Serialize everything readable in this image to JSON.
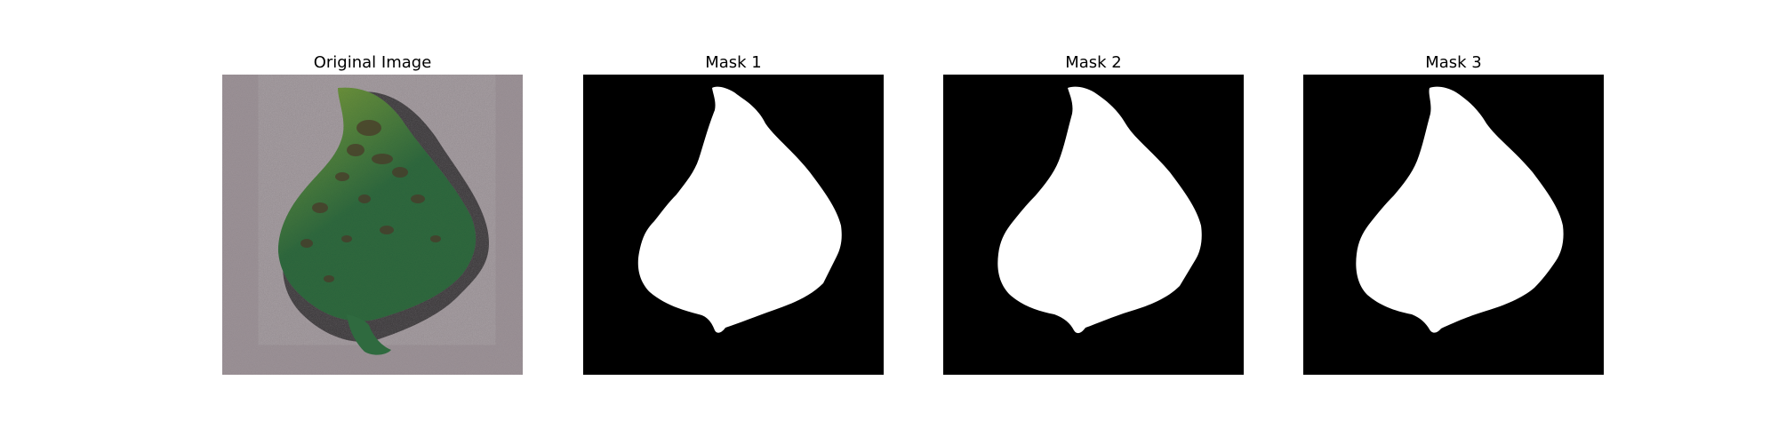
{
  "panels": [
    {
      "title": "Original Image",
      "kind": "photo",
      "subject": "leaf-photo"
    },
    {
      "title": "Mask 1",
      "kind": "mask",
      "subject": "leaf-mask"
    },
    {
      "title": "Mask 2",
      "kind": "mask",
      "subject": "leaf-mask"
    },
    {
      "title": "Mask 3",
      "kind": "mask",
      "subject": "leaf-mask"
    }
  ],
  "colors": {
    "background": "#ffffff",
    "mask_background": "#000000",
    "mask_foreground": "#ffffff",
    "paper": "#9e9499",
    "leaf_dark": "#2f6a3f",
    "leaf_light": "#7f9f3a",
    "lesion": "#4a3a2a",
    "shadow": "#1c1a1c"
  }
}
